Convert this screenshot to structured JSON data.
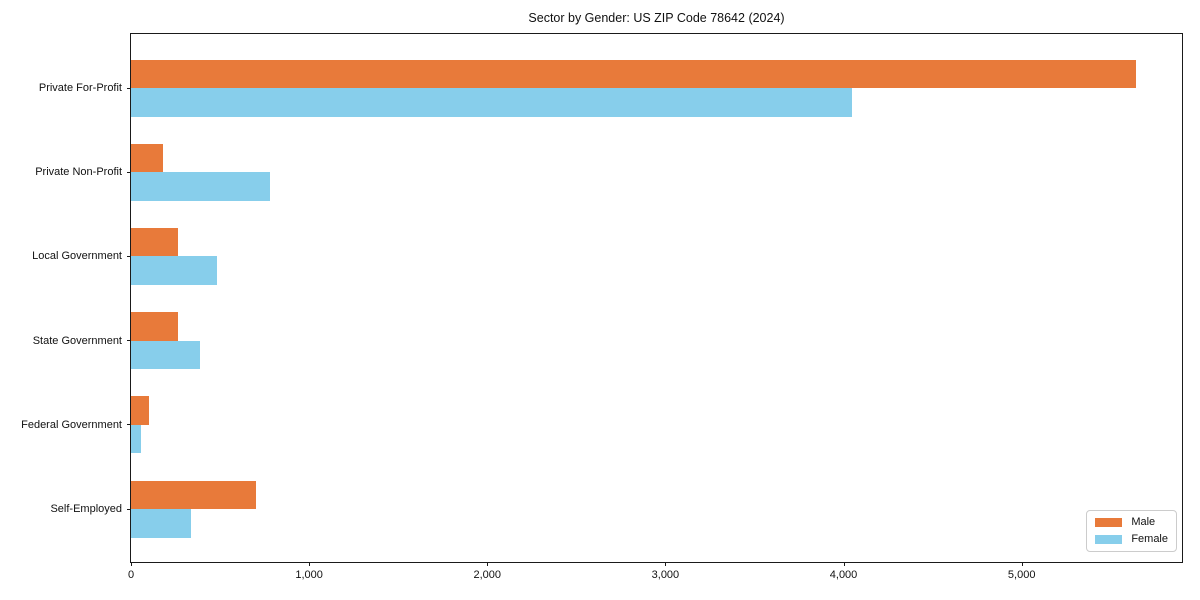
{
  "chart_data": {
    "type": "bar",
    "orientation": "horizontal",
    "title": "Sector by Gender: US ZIP Code 78642 (2024)",
    "categories": [
      "Private For-Profit",
      "Private Non-Profit",
      "Local Government",
      "State Government",
      "Federal Government",
      "Self-Employed"
    ],
    "series": [
      {
        "name": "Male",
        "color": "#E87A3A",
        "values": [
          5640,
          180,
          265,
          265,
          100,
          700
        ]
      },
      {
        "name": "Female",
        "color": "#87CEEB",
        "values": [
          4050,
          780,
          480,
          390,
          55,
          335
        ]
      }
    ],
    "xlabel": "",
    "ylabel": "",
    "xlim": [
      0,
      5900
    ],
    "x_ticks": [
      0,
      1000,
      2000,
      3000,
      4000,
      5000
    ],
    "x_tick_labels": [
      "0",
      "1,000",
      "2,000",
      "3,000",
      "4,000",
      "5,000"
    ],
    "grid": false,
    "legend_position": "lower right"
  },
  "colors": {
    "axis": "#1a1a1a",
    "legend_border": "#cccccc",
    "background": "#ffffff"
  }
}
